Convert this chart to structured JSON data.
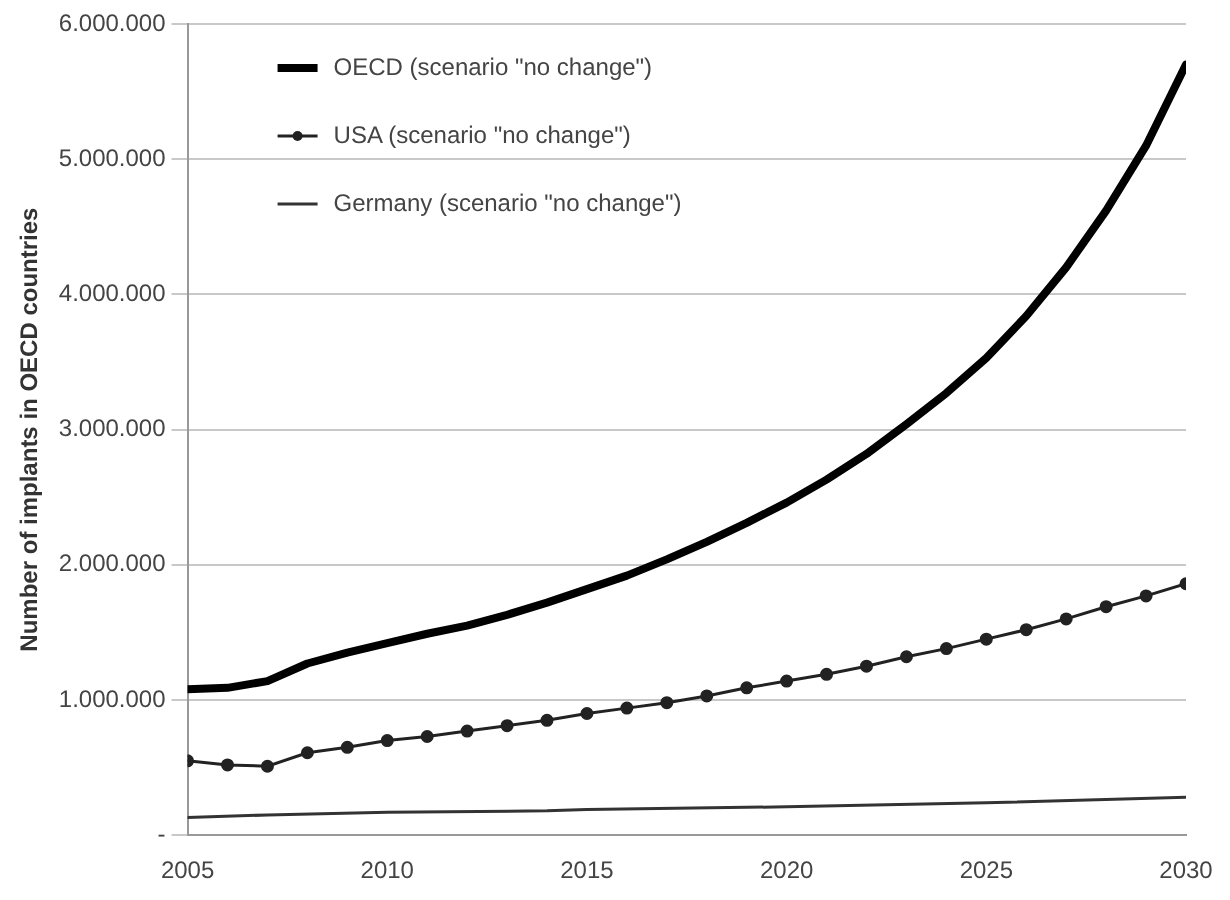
{
  "chart_data": {
    "type": "line",
    "ylabel": "Number of implants in OECD countries",
    "x": [
      2005,
      2006,
      2007,
      2008,
      2009,
      2010,
      2011,
      2012,
      2013,
      2014,
      2015,
      2016,
      2017,
      2018,
      2019,
      2020,
      2021,
      2022,
      2023,
      2024,
      2025,
      2026,
      2027,
      2028,
      2029,
      2030
    ],
    "series": [
      {
        "name": "OECD (scenario \"no change\")",
        "color": "#000000",
        "marker": "none",
        "values": [
          1080000,
          1090000,
          1140000,
          1270000,
          1350000,
          1420000,
          1490000,
          1550000,
          1630000,
          1720000,
          1820000,
          1920000,
          2040000,
          2170000,
          2310000,
          2460000,
          2630000,
          2820000,
          3040000,
          3270000,
          3530000,
          3840000,
          4200000,
          4620000,
          5100000,
          5700000
        ]
      },
      {
        "name": "USA (scenario \"no change\")",
        "color": "#222222",
        "marker": "circle",
        "values": [
          550000,
          520000,
          510000,
          610000,
          650000,
          700000,
          730000,
          770000,
          810000,
          850000,
          900000,
          940000,
          980000,
          1030000,
          1090000,
          1140000,
          1190000,
          1250000,
          1320000,
          1380000,
          1450000,
          1520000,
          1600000,
          1690000,
          1770000,
          1860000
        ]
      },
      {
        "name": "Germany (scenario \"no change\")",
        "color": "#333333",
        "marker": "none",
        "x": [
          2005,
          2007,
          2010,
          2014,
          2015,
          2020,
          2025,
          2030
        ],
        "values": [
          130000,
          150000,
          170000,
          180000,
          190000,
          210000,
          240000,
          280000
        ]
      }
    ],
    "xlim": [
      2005,
      2030
    ],
    "xticks": [
      2005,
      2010,
      2015,
      2020,
      2025,
      2030
    ],
    "ylim": [
      0,
      6000000
    ],
    "yticks": [
      {
        "value": 0,
        "label": "-"
      },
      {
        "value": 1000000,
        "label": "1.000.000"
      },
      {
        "value": 2000000,
        "label": "2.000.000"
      },
      {
        "value": 3000000,
        "label": "3.000.000"
      },
      {
        "value": 4000000,
        "label": "4.000.000"
      },
      {
        "value": 5000000,
        "label": "5.000.000"
      },
      {
        "value": 6000000,
        "label": "6.000.000"
      }
    ],
    "grid": "y",
    "legend": "top left"
  }
}
